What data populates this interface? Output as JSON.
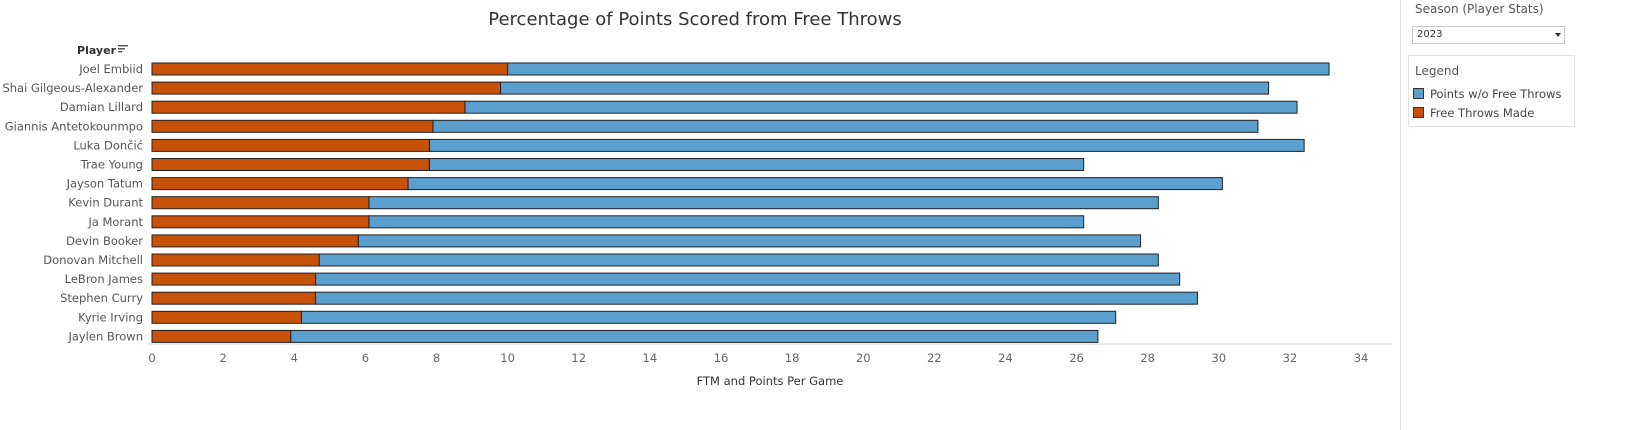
{
  "chart_data": {
    "type": "bar",
    "orientation": "horizontal",
    "stacked": true,
    "title": "Percentage of Points Scored from Free Throws",
    "xlabel": "FTM and Points Per Game",
    "ylabel": "Player",
    "xlim": [
      0,
      35
    ],
    "x_ticks": [
      0,
      2,
      4,
      6,
      8,
      10,
      12,
      14,
      16,
      18,
      20,
      22,
      24,
      26,
      28,
      30,
      32,
      34
    ],
    "categories": [
      "Joel Embiid",
      "Shai Gilgeous-Alexander",
      "Damian Lillard",
      "Giannis Antetokounmpo",
      "Luka Dončić",
      "Trae Young",
      "Jayson Tatum",
      "Kevin Durant",
      "Ja Morant",
      "Devin Booker",
      "Donovan Mitchell",
      "LeBron James",
      "Stephen Curry",
      "Kyrie Irving",
      "Jaylen Brown"
    ],
    "series": [
      {
        "name": "Free Throws Made",
        "color": "#c8510a",
        "values": [
          10.0,
          9.8,
          8.8,
          7.9,
          7.8,
          7.8,
          7.2,
          6.1,
          6.1,
          5.8,
          4.7,
          4.6,
          4.6,
          4.2,
          3.9
        ]
      },
      {
        "name": "Points w/o Free Throws",
        "color": "#5b9fcf",
        "values": [
          23.1,
          21.6,
          23.4,
          23.2,
          24.6,
          18.4,
          22.9,
          22.2,
          20.1,
          22.0,
          23.6,
          24.3,
          24.8,
          22.9,
          22.7
        ]
      }
    ],
    "grid": false,
    "legend_position": "right"
  },
  "sidebar": {
    "filter_title": "Season (Player Stats)",
    "filter_value": "2023",
    "legend_title": "Legend",
    "legend_items": [
      {
        "label": "Points w/o Free Throws",
        "color": "#5b9fcf"
      },
      {
        "label": "Free Throws Made",
        "color": "#c8510a"
      }
    ]
  },
  "icons": {
    "sort": "sort-descending-icon",
    "dropdown": "chevron-down-icon"
  }
}
